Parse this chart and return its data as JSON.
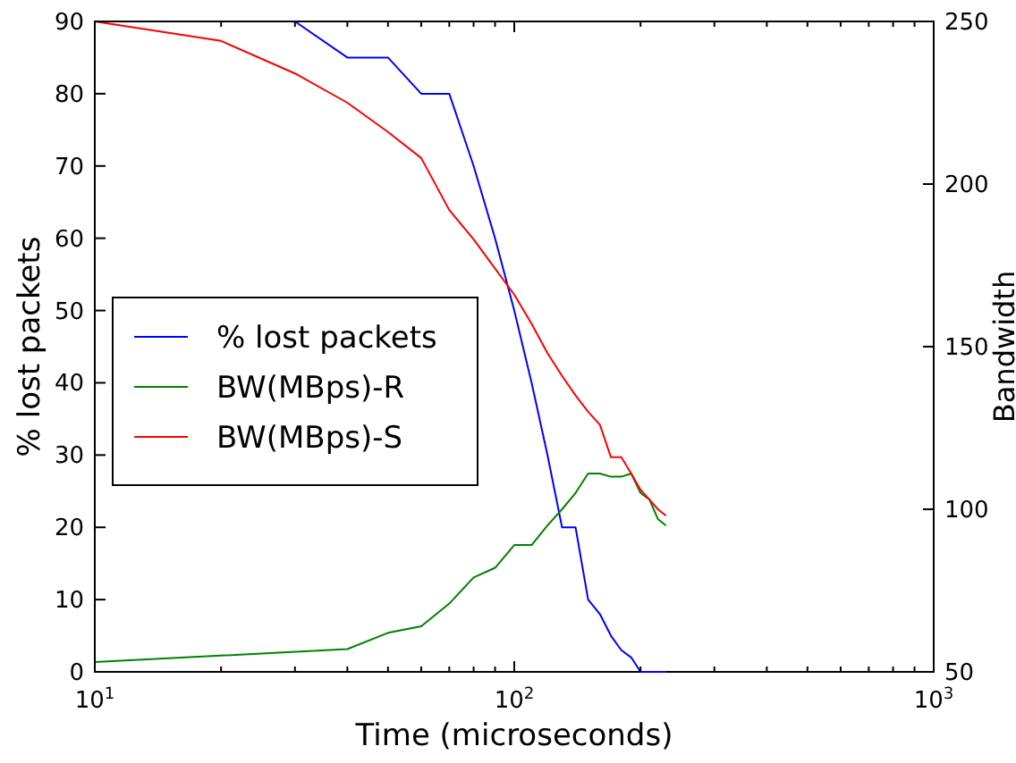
{
  "chart_data": {
    "type": "line",
    "xlabel": "Time (microseconds)",
    "ylabel": "% lost packets",
    "y2label": "Bandwidth",
    "log": "x",
    "grid": false,
    "legend": "left",
    "line_style": "solid",
    "marker": "none",
    "xlim": [
      10,
      1000
    ],
    "xticks": [
      {
        "value": 10,
        "label": "10$^{1}$"
      },
      {
        "value": 20,
        "label": null
      },
      {
        "value": 30,
        "label": null
      },
      {
        "value": 40,
        "label": null
      },
      {
        "value": 50,
        "label": null
      },
      {
        "value": 60,
        "label": null
      },
      {
        "value": 70,
        "label": null
      },
      {
        "value": 80,
        "label": null
      },
      {
        "value": 90,
        "label": null
      },
      {
        "value": 100,
        "label": "10$^{2}$"
      },
      {
        "value": 200,
        "label": null
      },
      {
        "value": 300,
        "label": null
      },
      {
        "value": 400,
        "label": null
      },
      {
        "value": 500,
        "label": null
      },
      {
        "value": 600,
        "label": null
      },
      {
        "value": 700,
        "label": null
      },
      {
        "value": 800,
        "label": null
      },
      {
        "value": 900,
        "label": null
      },
      {
        "value": 1000,
        "label": "10$^{3}$"
      }
    ],
    "ylim": [
      0,
      90
    ],
    "yticks": [
      0,
      10,
      20,
      30,
      40,
      50,
      60,
      70,
      80,
      90
    ],
    "y2lim": [
      50,
      250
    ],
    "y2ticks": [
      50,
      100,
      150,
      200,
      250
    ],
    "series": [
      {
        "name": "% lost packets",
        "color": "#0000ff",
        "x": [
          30,
          40,
          50,
          60,
          70,
          80,
          90,
          100,
          110,
          120,
          130,
          140,
          150,
          160,
          170,
          180,
          190,
          200,
          230
        ],
        "values": [
          90,
          85,
          85,
          80,
          80,
          70,
          60,
          50,
          40,
          30,
          20,
          20,
          10,
          8,
          5,
          3,
          2,
          0,
          0
        ]
      },
      {
        "name": "BW(MBps)-R",
        "color": "#008000",
        "axis": "y2",
        "x": [
          10,
          40,
          50,
          60,
          70,
          80,
          90,
          100,
          110,
          120,
          130,
          140,
          150,
          160,
          170,
          180,
          190,
          200,
          210,
          220,
          230
        ],
        "values": [
          53,
          57,
          62,
          64,
          71,
          79,
          82,
          89,
          89,
          95,
          100,
          105,
          111,
          111,
          110,
          110,
          111,
          105,
          103,
          97,
          95
        ]
      },
      {
        "name": "BW(MBps)-S",
        "color": "#ff0000",
        "axis": "y2",
        "x": [
          10,
          20,
          30,
          40,
          50,
          60,
          70,
          80,
          90,
          100,
          110,
          120,
          130,
          140,
          150,
          160,
          170,
          180,
          190,
          200,
          210,
          220,
          230
        ],
        "values": [
          250,
          244,
          234,
          225,
          216,
          208,
          192,
          183,
          174,
          166,
          157,
          148,
          141,
          135,
          130,
          126,
          116,
          116,
          111,
          106,
          103,
          100,
          98
        ]
      }
    ]
  }
}
